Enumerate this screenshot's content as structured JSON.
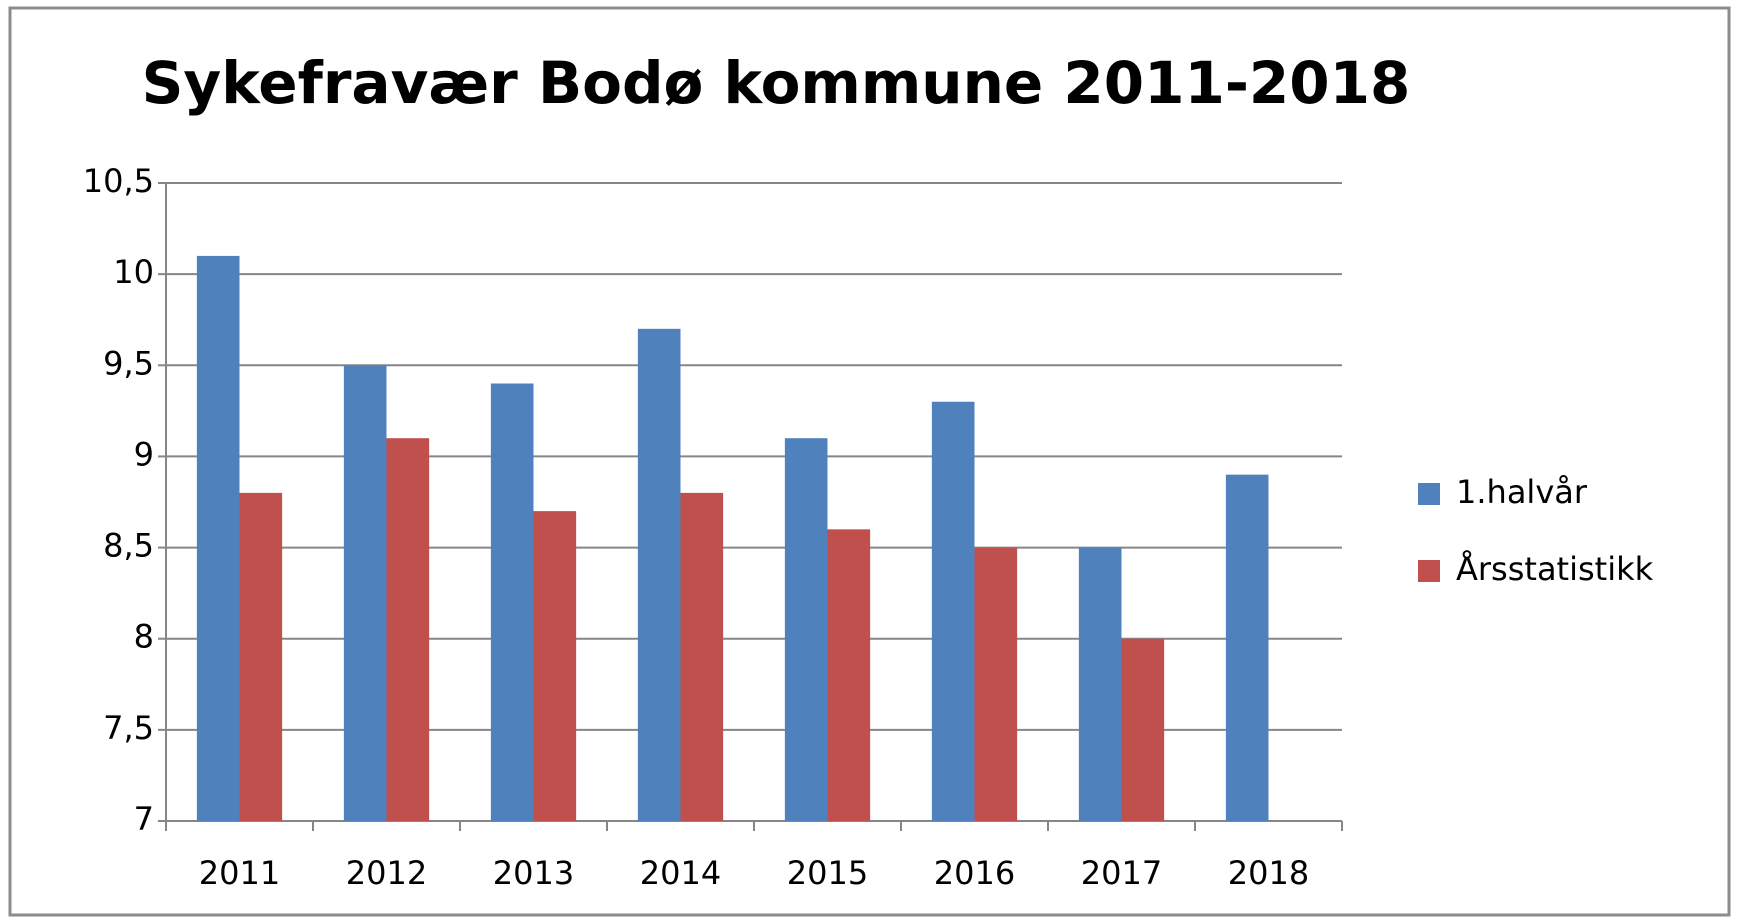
{
  "chart_data": {
    "type": "bar",
    "title": "Sykefravær Bodø kommune 2011-2018",
    "categories": [
      "2011",
      "2012",
      "2013",
      "2014",
      "2015",
      "2016",
      "2017",
      "2018"
    ],
    "series": [
      {
        "name": "1.halvår",
        "color": "#4f81bd",
        "values": [
          10.1,
          9.5,
          9.4,
          9.7,
          9.1,
          9.3,
          8.5,
          8.9
        ]
      },
      {
        "name": "Årsstatistikk",
        "color": "#c0504d",
        "values": [
          8.8,
          9.1,
          8.7,
          8.8,
          8.6,
          8.5,
          8.0,
          null
        ]
      }
    ],
    "ylim": [
      7,
      10.5
    ],
    "yticks": [
      7,
      {
        "value": 7.5,
        "label": "7,5"
      },
      8,
      {
        "value": 8.5,
        "label": "8,5"
      },
      9,
      {
        "value": 9.5,
        "label": "9,5"
      },
      10,
      {
        "value": 10.5,
        "label": "10,5"
      }
    ],
    "grid": true,
    "legend": "right"
  }
}
